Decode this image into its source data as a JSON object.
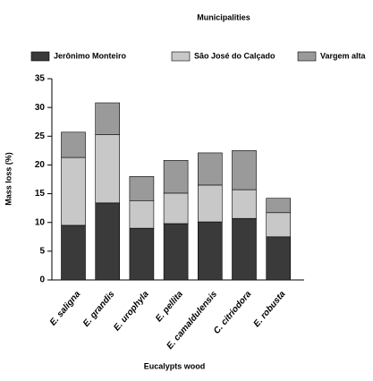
{
  "chart_data": {
    "type": "stacked_bar",
    "title": "Municipalities",
    "x_label": "Eucalypts wood",
    "y_label": "Mass loss (%)",
    "categories": [
      "E. saligna",
      "E. grandis",
      "E. urophyla",
      "E. pellita",
      "E. camaldulensis",
      "C. citriodora",
      "E. robusta"
    ],
    "series": [
      {
        "name": "Jerônimo Monteiro",
        "color": "#3a3a3a",
        "values": [
          9.5,
          13.4,
          9.0,
          9.8,
          10.1,
          10.7,
          7.5
        ]
      },
      {
        "name": "São José do Calçado",
        "color": "#c8c8c8",
        "values": [
          11.8,
          11.9,
          4.8,
          5.3,
          6.4,
          5.0,
          4.2
        ]
      },
      {
        "name": "Vargem alta",
        "color": "#9a9a9a",
        "values": [
          4.4,
          5.5,
          4.2,
          5.7,
          5.6,
          6.8,
          2.5
        ]
      }
    ],
    "ylim": [
      0,
      35
    ],
    "yticks": [
      0,
      5,
      10,
      15,
      20,
      25,
      30,
      35
    ],
    "legend": "top"
  }
}
